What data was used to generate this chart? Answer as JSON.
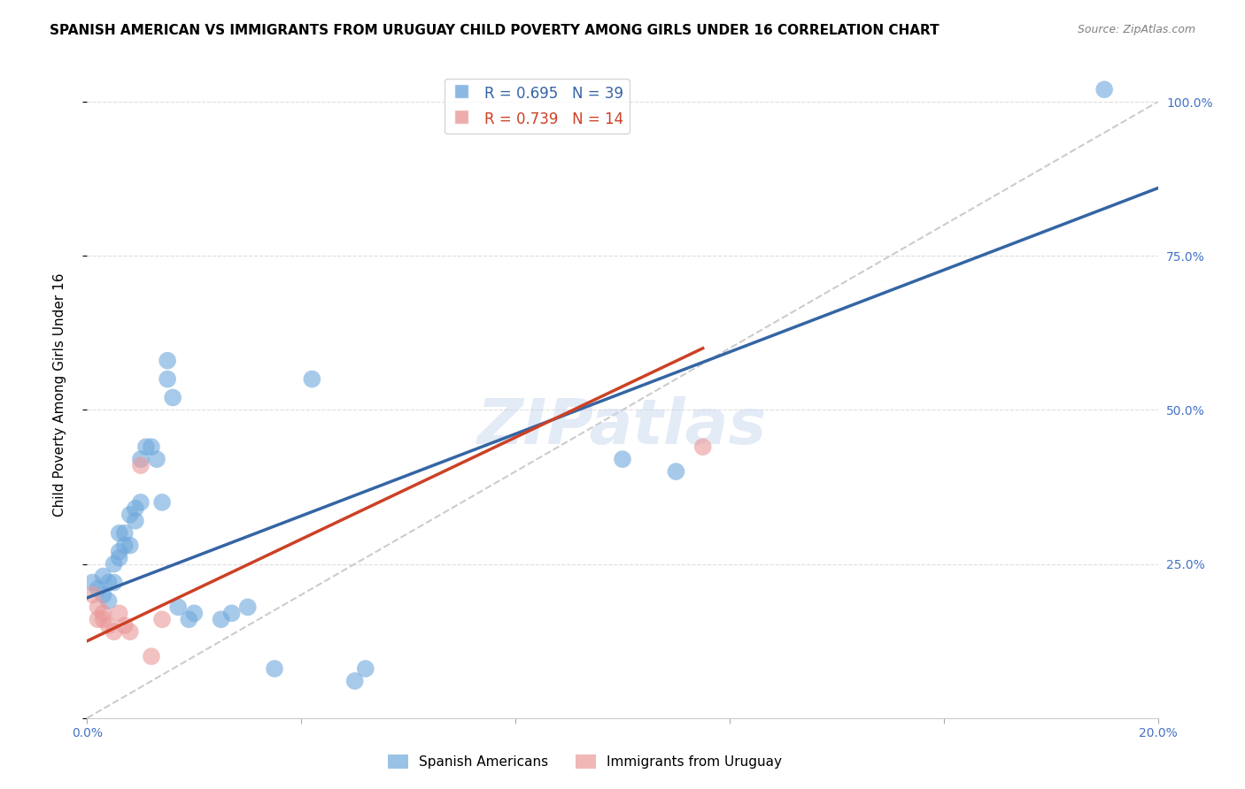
{
  "title": "SPANISH AMERICAN VS IMMIGRANTS FROM URUGUAY CHILD POVERTY AMONG GIRLS UNDER 16 CORRELATION CHART",
  "source": "Source: ZipAtlas.com",
  "ylabel": "Child Poverty Among Girls Under 16",
  "xlim": [
    0.0,
    0.2
  ],
  "ylim": [
    0.0,
    1.05
  ],
  "x_ticks": [
    0.0,
    0.04,
    0.08,
    0.12,
    0.16,
    0.2
  ],
  "y_ticks": [
    0.0,
    0.25,
    0.5,
    0.75,
    1.0
  ],
  "y_tick_labels_right": [
    "",
    "25.0%",
    "50.0%",
    "75.0%",
    "100.0%"
  ],
  "watermark": "ZIPatlas",
  "legend1_r": "0.695",
  "legend1_n": "39",
  "legend2_r": "0.739",
  "legend2_n": "14",
  "blue_color": "#6fa8dc",
  "pink_color": "#ea9999",
  "blue_line_color": "#3465a4",
  "pink_line_color": "#cc4125",
  "diagonal_color": "#cccccc",
  "scatter_blue": [
    [
      0.001,
      0.22
    ],
    [
      0.002,
      0.21
    ],
    [
      0.003,
      0.2
    ],
    [
      0.003,
      0.23
    ],
    [
      0.004,
      0.19
    ],
    [
      0.004,
      0.22
    ],
    [
      0.005,
      0.22
    ],
    [
      0.005,
      0.25
    ],
    [
      0.006,
      0.26
    ],
    [
      0.006,
      0.27
    ],
    [
      0.006,
      0.3
    ],
    [
      0.007,
      0.28
    ],
    [
      0.007,
      0.3
    ],
    [
      0.008,
      0.28
    ],
    [
      0.008,
      0.33
    ],
    [
      0.009,
      0.32
    ],
    [
      0.009,
      0.34
    ],
    [
      0.01,
      0.35
    ],
    [
      0.01,
      0.42
    ],
    [
      0.011,
      0.44
    ],
    [
      0.012,
      0.44
    ],
    [
      0.013,
      0.42
    ],
    [
      0.014,
      0.35
    ],
    [
      0.015,
      0.55
    ],
    [
      0.015,
      0.58
    ],
    [
      0.016,
      0.52
    ],
    [
      0.017,
      0.18
    ],
    [
      0.019,
      0.16
    ],
    [
      0.02,
      0.17
    ],
    [
      0.025,
      0.16
    ],
    [
      0.027,
      0.17
    ],
    [
      0.03,
      0.18
    ],
    [
      0.035,
      0.08
    ],
    [
      0.042,
      0.55
    ],
    [
      0.05,
      0.06
    ],
    [
      0.052,
      0.08
    ],
    [
      0.1,
      0.42
    ],
    [
      0.11,
      0.4
    ],
    [
      0.19,
      1.02
    ]
  ],
  "scatter_pink": [
    [
      0.001,
      0.2
    ],
    [
      0.002,
      0.16
    ],
    [
      0.002,
      0.18
    ],
    [
      0.003,
      0.17
    ],
    [
      0.003,
      0.16
    ],
    [
      0.004,
      0.15
    ],
    [
      0.005,
      0.14
    ],
    [
      0.006,
      0.17
    ],
    [
      0.007,
      0.15
    ],
    [
      0.008,
      0.14
    ],
    [
      0.01,
      0.41
    ],
    [
      0.012,
      0.1
    ],
    [
      0.014,
      0.16
    ],
    [
      0.115,
      0.44
    ]
  ],
  "blue_line": [
    [
      0.0,
      0.195
    ],
    [
      0.2,
      0.86
    ]
  ],
  "pink_line": [
    [
      0.0,
      0.125
    ],
    [
      0.115,
      0.6
    ]
  ],
  "diagonal_line": [
    [
      0.0,
      0.0
    ],
    [
      0.2,
      1.0
    ]
  ],
  "background_color": "#ffffff",
  "grid_color": "#dddddd",
  "title_fontsize": 11,
  "axis_label_fontsize": 11,
  "tick_fontsize": 10
}
